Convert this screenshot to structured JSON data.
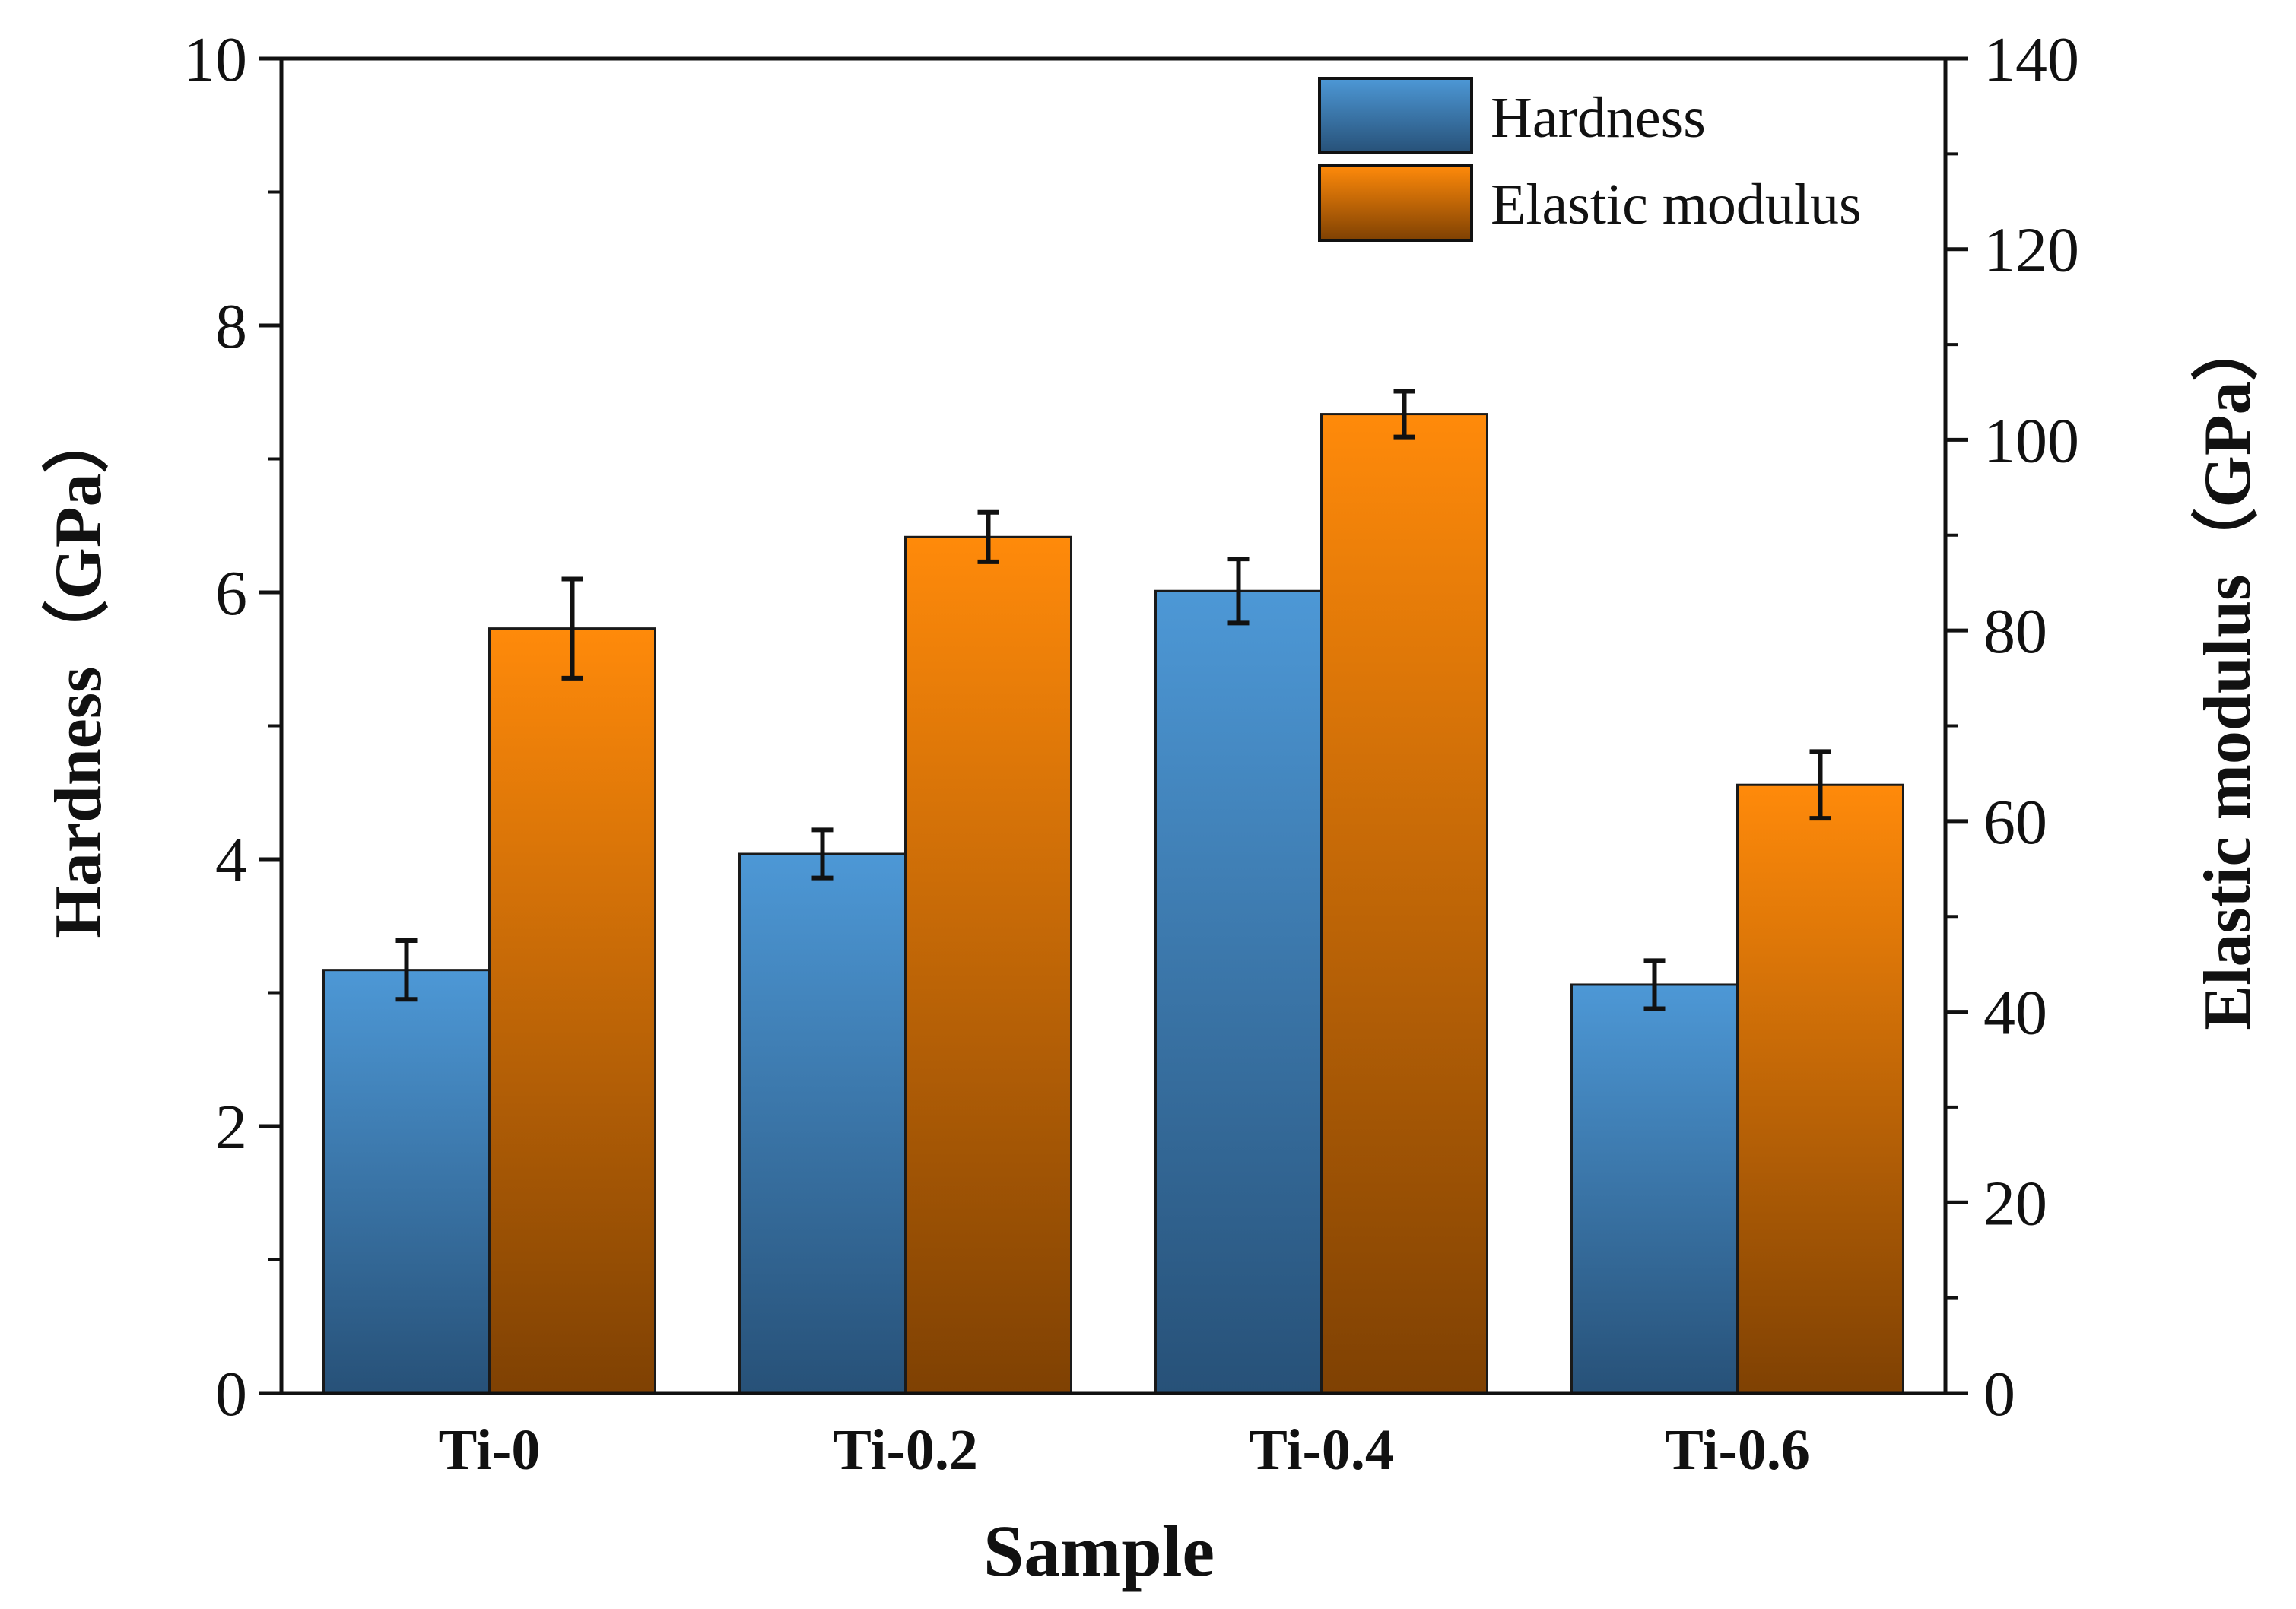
{
  "chart_data": {
    "type": "bar",
    "title": "",
    "xlabel": "Sample",
    "ylabel_left": "Hardness（GPa）",
    "ylabel_right": "Elastic modulus（GPa）",
    "categories": [
      "Ti-0",
      "Ti-0.2",
      "Ti-0.4",
      "Ti-0.6"
    ],
    "ylim_left": [
      0,
      10
    ],
    "ylim_right": [
      0,
      140
    ],
    "yticks_left": [
      "0",
      "2",
      "4",
      "6",
      "8",
      "10"
    ],
    "yticks_right": [
      "0",
      "20",
      "40",
      "60",
      "80",
      "100",
      "120",
      "140"
    ],
    "series": [
      {
        "name": "Hardness",
        "axis": "left",
        "values": [
          3.17,
          4.04,
          6.01,
          3.06
        ],
        "errors": [
          0.22,
          0.18,
          0.24,
          0.18
        ],
        "color_top": "#4d98d6",
        "color_bottom": "#275178"
      },
      {
        "name": "Elastic modulus",
        "axis": "right",
        "values": [
          80.2,
          89.8,
          102.7,
          63.8
        ],
        "errors": [
          5.2,
          2.6,
          2.4,
          3.5
        ],
        "color_top": "#ff8a0a",
        "color_bottom": "#7f4103"
      }
    ],
    "legend": {
      "position": "top-right",
      "entries": [
        "Hardness",
        "Elastic modulus"
      ]
    },
    "grid": false
  }
}
